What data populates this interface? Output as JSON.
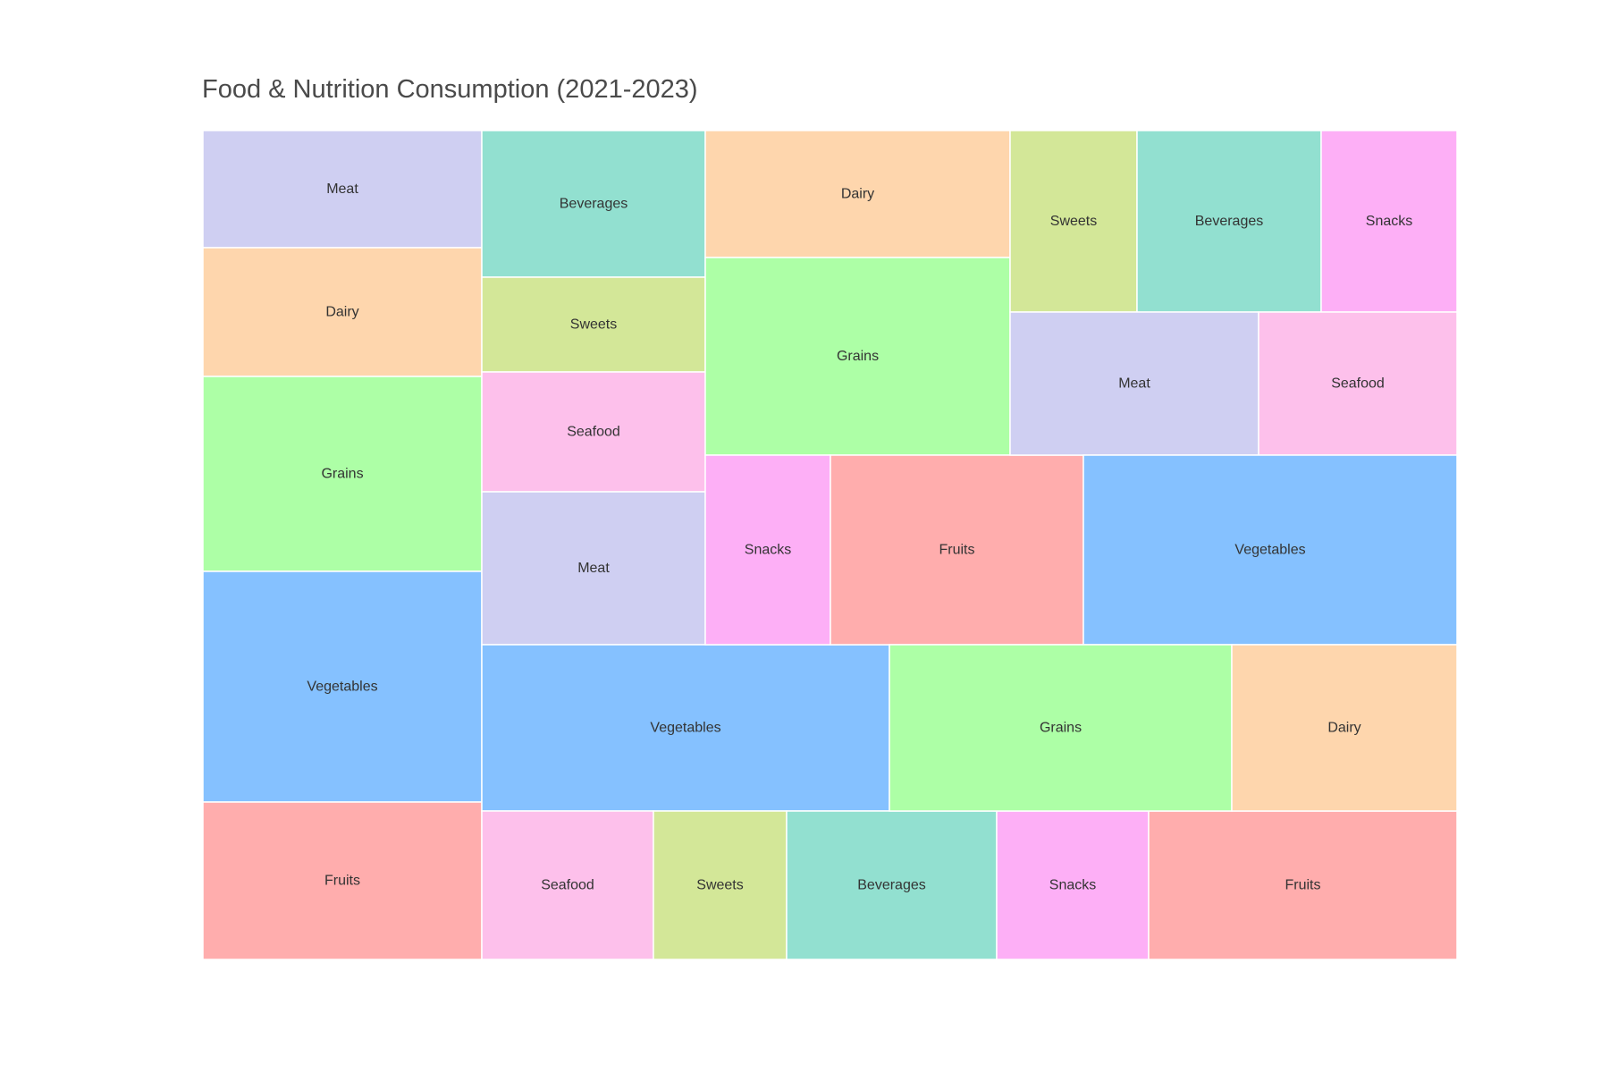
{
  "chart_data": {
    "type": "treemap",
    "title": "Food & Nutrition Consumption (2021-2023)",
    "categories": [
      "Fruits",
      "Vegetables",
      "Grains",
      "Dairy",
      "Meat",
      "Seafood",
      "Sweets",
      "Beverages",
      "Snacks"
    ],
    "colors": {
      "Fruits": "#FFADAD",
      "Vegetables": "#85C1FF",
      "Grains": "#ADFFA6",
      "Dairy": "#FED6AD",
      "Meat": "#CFCFF2",
      "Seafood": "#FDC0EB",
      "Sweets": "#D3E798",
      "Beverages": "#92E0D0",
      "Snacks": "#FDAFF6"
    },
    "tiles": [
      {
        "label": "Meat",
        "value": 104
      },
      {
        "label": "Dairy",
        "value": 116
      },
      {
        "label": "Grains",
        "value": 176
      },
      {
        "label": "Vegetables",
        "value": 208
      },
      {
        "label": "Fruits",
        "value": 142
      },
      {
        "label": "Beverages",
        "value": 106
      },
      {
        "label": "Sweets",
        "value": 69
      },
      {
        "label": "Seafood",
        "value": 87
      },
      {
        "label": "Meat",
        "value": 112
      },
      {
        "label": "Vegetables",
        "value": 220
      },
      {
        "label": "Seafood",
        "value": 82
      },
      {
        "label": "Sweets",
        "value": 64
      },
      {
        "label": "Beverages",
        "value": 101
      },
      {
        "label": "Snacks",
        "value": 73
      },
      {
        "label": "Fruits",
        "value": 148
      },
      {
        "label": "Dairy",
        "value": 126
      },
      {
        "label": "Grains",
        "value": 195
      },
      {
        "label": "Snacks",
        "value": 77
      },
      {
        "label": "Fruits",
        "value": 155
      },
      {
        "label": "Sweets",
        "value": 75
      },
      {
        "label": "Beverages",
        "value": 109
      },
      {
        "label": "Snacks",
        "value": 80
      },
      {
        "label": "Meat",
        "value": 115
      },
      {
        "label": "Seafood",
        "value": 92
      },
      {
        "label": "Vegetables",
        "value": 230
      },
      {
        "label": "Grains",
        "value": 185
      },
      {
        "label": "Dairy",
        "value": 121
      }
    ]
  }
}
